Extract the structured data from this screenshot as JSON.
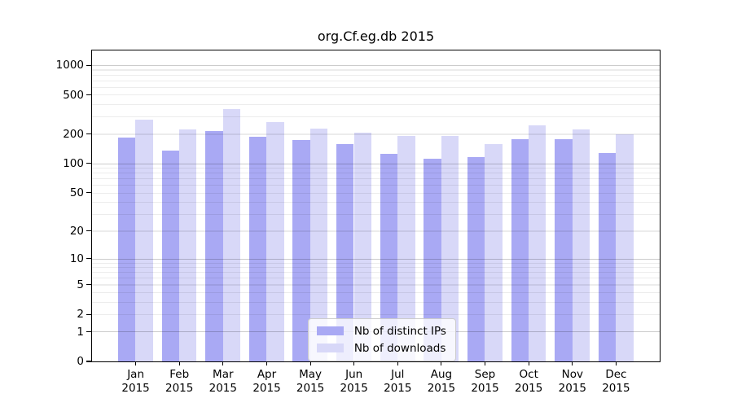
{
  "chart_data": {
    "type": "bar",
    "title": "org.Cf.eg.db 2015",
    "categories": [
      "Jan",
      "Feb",
      "Mar",
      "Apr",
      "May",
      "Jun",
      "Jul",
      "Aug",
      "Sep",
      "Oct",
      "Nov",
      "Dec"
    ],
    "x_sub_label": "2015",
    "series": [
      {
        "name": "Nb of distinct IPs",
        "color": "#a9a9f4",
        "values": [
          185,
          136,
          215,
          186,
          173,
          159,
          125,
          112,
          117,
          178,
          175,
          127
        ]
      },
      {
        "name": "Nb of downloads",
        "color": "#d8d8f8",
        "values": [
          281,
          221,
          360,
          264,
          228,
          207,
          192,
          189,
          159,
          244,
          223,
          197
        ]
      }
    ],
    "y_ticks": [
      0,
      1,
      2,
      5,
      10,
      20,
      50,
      100,
      200,
      500,
      1000
    ],
    "y_major_gridlines": [
      1,
      10,
      100,
      1000
    ],
    "y_minor_gridlines": [
      2,
      3,
      4,
      5,
      6,
      7,
      8,
      9,
      20,
      30,
      40,
      50,
      60,
      70,
      80,
      90,
      200,
      300,
      400,
      500,
      600,
      700,
      800,
      900
    ],
    "y_scale": "log10(1+value)",
    "ylim": [
      0,
      1410
    ],
    "xlim": [
      -1,
      12
    ],
    "bar_width_fraction": 0.4,
    "grid": true,
    "legend_position": "lower center",
    "colors": {
      "axis": "#000000",
      "grid_major": "rgba(0,0,0,0.20)",
      "grid_minor": "rgba(0,0,0,0.075)"
    }
  }
}
